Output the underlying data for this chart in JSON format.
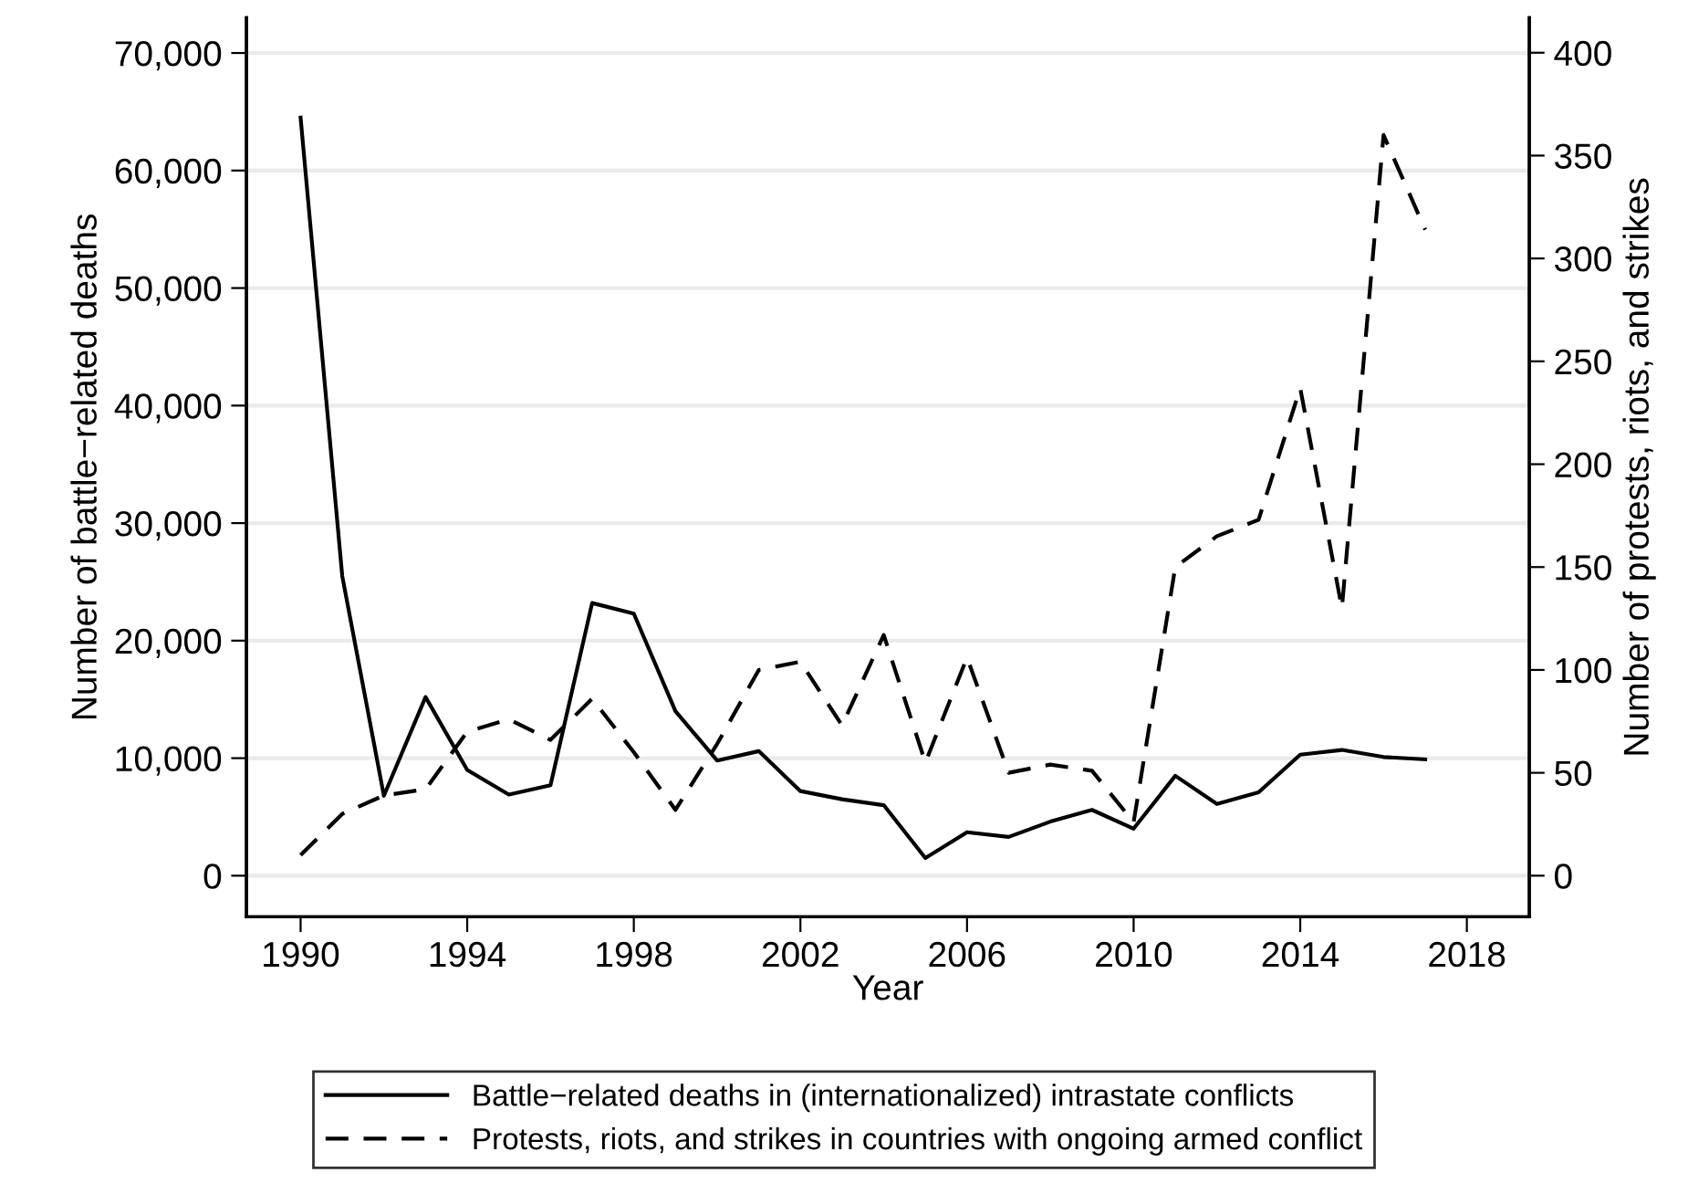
{
  "chart_data": {
    "type": "line",
    "xlabel": "Year",
    "ylabel": "Number of battle−related deaths",
    "y2label": "Number of protests, riots, and strikes",
    "x": [
      1990,
      1991,
      1992,
      1993,
      1994,
      1995,
      1996,
      1997,
      1998,
      1999,
      2000,
      2001,
      2002,
      2003,
      2004,
      2005,
      2006,
      2007,
      2008,
      2009,
      2010,
      2011,
      2012,
      2013,
      2014,
      2015,
      2016,
      2017
    ],
    "series": [
      {
        "name": "Battle−related deaths in (internationalized) intrastate conflicts",
        "color": "#000000",
        "line_style": "solid",
        "values": [
          64500,
          25500,
          6800,
          15200,
          9000,
          6900,
          7700,
          23200,
          22300,
          14000,
          9800,
          10600,
          7200,
          6500,
          6000,
          1500,
          3700,
          3300,
          4600,
          5600,
          4000,
          8500,
          6100,
          7100,
          10300,
          10700,
          10100,
          9900
        ]
      },
      {
        "name": "Protests, riots, and strikes in countries with ongoing armed conflict",
        "color": "#000000",
        "line_style": "dashed",
        "axis": "y2",
        "values": [
          10,
          30,
          39,
          42,
          70,
          76,
          66,
          86,
          60,
          32,
          64,
          100,
          104,
          73,
          117,
          55,
          106,
          50,
          54,
          51,
          26,
          150,
          165,
          173,
          237,
          130,
          360,
          314
        ]
      }
    ],
    "xlim": [
      1988.7,
      2019.5
    ],
    "xticks": [
      1990,
      1994,
      1998,
      2002,
      2006,
      2010,
      2014,
      2018
    ],
    "ylim": [
      -3500,
      73000
    ],
    "yticks": [
      {
        "value": 0,
        "label": "0"
      },
      {
        "value": 10000,
        "label": "10,000"
      },
      {
        "value": 20000,
        "label": "20,000"
      },
      {
        "value": 30000,
        "label": "30,000"
      },
      {
        "value": 40000,
        "label": "40,000"
      },
      {
        "value": 50000,
        "label": "50,000"
      },
      {
        "value": 60000,
        "label": "60,000"
      },
      {
        "value": 70000,
        "label": "70,000"
      }
    ],
    "y2lim": [
      -20,
      417
    ],
    "y2ticks": [
      0,
      50,
      100,
      150,
      200,
      250,
      300,
      350,
      400
    ],
    "grid": "y",
    "legend": "bottom"
  }
}
